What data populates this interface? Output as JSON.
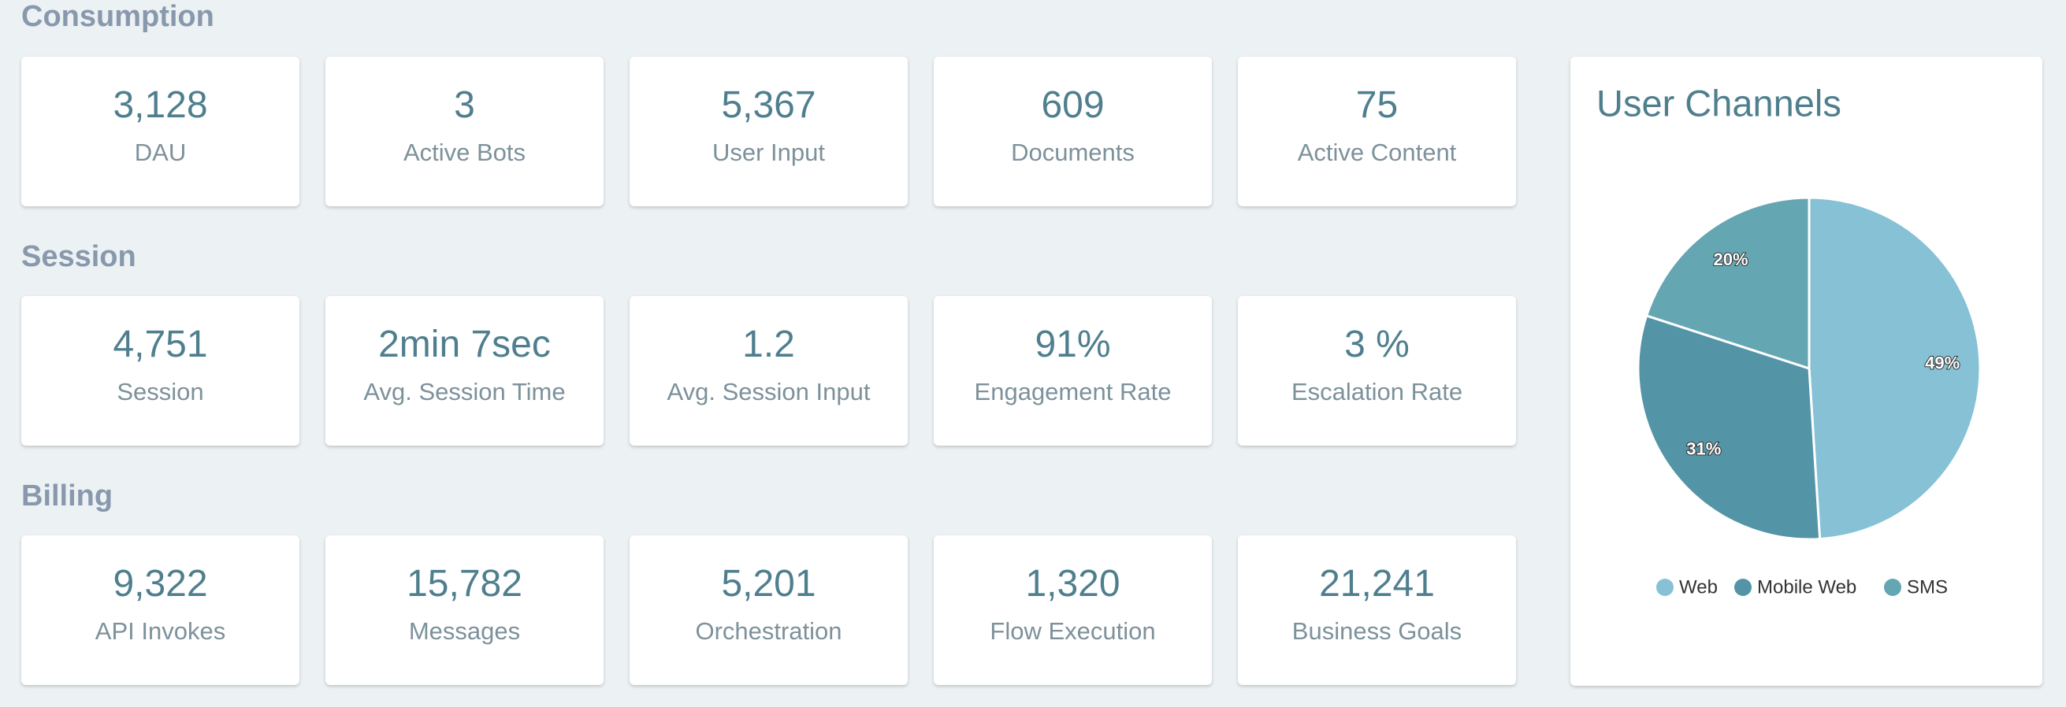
{
  "sections": [
    {
      "title": "Consumption",
      "cards": [
        {
          "value": "3,128",
          "label": "DAU"
        },
        {
          "value": "3",
          "label": "Active Bots"
        },
        {
          "value": "5,367",
          "label": "User Input"
        },
        {
          "value": "609",
          "label": "Documents"
        },
        {
          "value": "75",
          "label": "Active Content"
        }
      ]
    },
    {
      "title": "Session",
      "cards": [
        {
          "value": "4,751",
          "label": "Session"
        },
        {
          "value": "2min 7sec",
          "label": "Avg. Session Time"
        },
        {
          "value": "1.2",
          "label": "Avg. Session Input"
        },
        {
          "value": "91%",
          "label": "Engagement Rate"
        },
        {
          "value": "3 %",
          "label": "Escalation Rate"
        }
      ]
    },
    {
      "title": "Billing",
      "cards": [
        {
          "value": "9,322",
          "label": "API Invokes"
        },
        {
          "value": "15,782",
          "label": "Messages"
        },
        {
          "value": "5,201",
          "label": "Orchestration"
        },
        {
          "value": "1,320",
          "label": "Flow Execution"
        },
        {
          "value": "21,241",
          "label": "Business Goals"
        }
      ]
    }
  ],
  "chart_data": {
    "type": "pie",
    "title": "User Channels",
    "categories": [
      "Web",
      "Mobile Web",
      "SMS"
    ],
    "values": [
      49,
      31,
      20
    ],
    "value_labels": [
      "49%",
      "31%",
      "20%"
    ],
    "colors": [
      "#86c1d6",
      "#5494a7",
      "#65a6b3"
    ],
    "legend": "bottom"
  }
}
